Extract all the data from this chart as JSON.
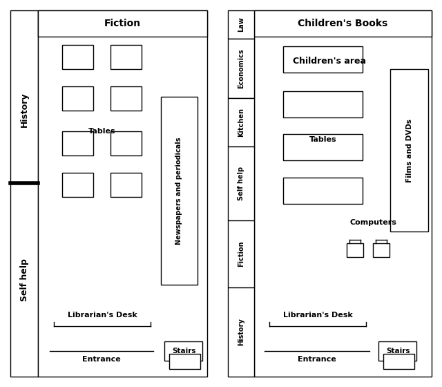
{
  "fig_width": 6.4,
  "fig_height": 5.6,
  "bg_color": "white",
  "left_plan": {
    "title": "Fiction",
    "left_label_top": "History",
    "left_label_bottom": "Self help",
    "tables_label": "Tables",
    "newspaper_label": "Newspapers and periodicals",
    "desk_label": "Librarian's Desk",
    "entrance_label": "Entrance",
    "stairs_label": "Stairs"
  },
  "right_plan": {
    "title": "Children's Books",
    "area_label": "Children's area",
    "left_labels": [
      "Law",
      "Economics",
      "Kitchen",
      "Self help",
      "Fiction",
      "History"
    ],
    "tables_label": "Tables",
    "films_label": "Films and DVDs",
    "computers_label": "Computers",
    "desk_label": "Librarian's Desk",
    "entrance_label": "Entrance",
    "stairs_label": "Stairs"
  }
}
